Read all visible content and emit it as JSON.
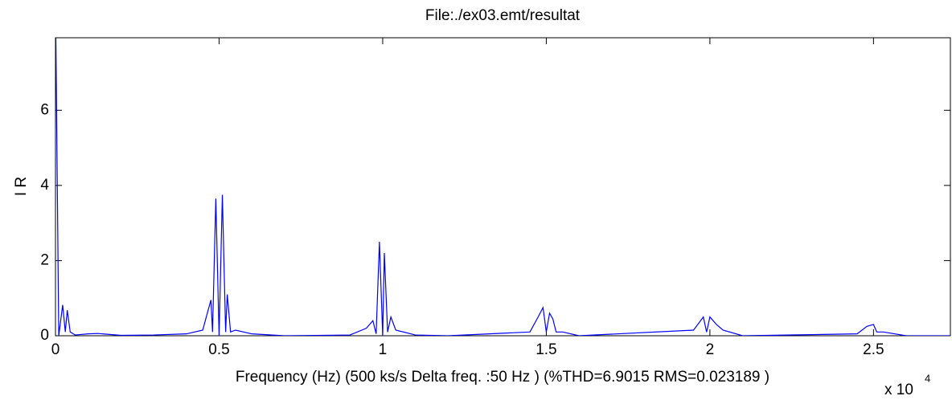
{
  "chart_data": {
    "type": "line",
    "title": "File:./ex03.emt/resultat",
    "x_label": "Frequency (Hz)    (500 ks/s    Delta freq. :50  Hz ) (%THD=6.9015  RMS=0.023189 )",
    "y_label": "I R",
    "x_multiplier": {
      "base": "x 10",
      "exponent": "4"
    },
    "x": [
      0,
      0.01,
      0.022,
      0.03,
      0.036,
      0.045,
      0.06,
      0.1,
      0.13,
      0.2,
      0.3,
      0.4,
      0.45,
      0.475,
      0.48,
      0.49,
      0.5,
      0.51,
      0.52,
      0.525,
      0.535,
      0.55,
      0.6,
      0.7,
      0.9,
      0.95,
      0.97,
      0.98,
      0.99,
      1,
      1.005,
      1.015,
      1.025,
      1.04,
      1.1,
      1.2,
      1.45,
      1.475,
      1.49,
      1.5,
      1.51,
      1.52,
      1.53,
      1.55,
      1.6,
      1.95,
      1.98,
      1.99,
      2.0,
      2.02,
      2.04,
      2.1,
      2.45,
      2.48,
      2.5,
      2.51,
      2.53,
      2.6,
      2.735
    ],
    "series": [
      {
        "name": "I R",
        "color": "#0000ff",
        "values": [
          9,
          0,
          0.82,
          0.1,
          0.68,
          0.1,
          0.02,
          0.05,
          0.06,
          0.01,
          0.02,
          0.05,
          0.15,
          0.95,
          0.1,
          3.65,
          0,
          3.75,
          0.1,
          1.1,
          0.1,
          0.15,
          0.05,
          0,
          0.02,
          0.2,
          0.4,
          0.05,
          2.5,
          0,
          2.2,
          0.1,
          0.5,
          0.15,
          0.02,
          0,
          0.1,
          0.5,
          0.75,
          0.1,
          0.6,
          0.45,
          0.1,
          0.1,
          0,
          0.15,
          0.5,
          0.1,
          0.5,
          0.3,
          0.15,
          0,
          0.05,
          0.25,
          0.3,
          0.1,
          0.1,
          0,
          0
        ]
      }
    ],
    "xlim": [
      0,
      2.735
    ],
    "ylim": [
      0,
      7.93
    ],
    "xticks": [
      0,
      0.5,
      1,
      1.5,
      2,
      2.5
    ],
    "yticks": [
      0,
      2,
      4,
      6
    ],
    "grid": false
  }
}
